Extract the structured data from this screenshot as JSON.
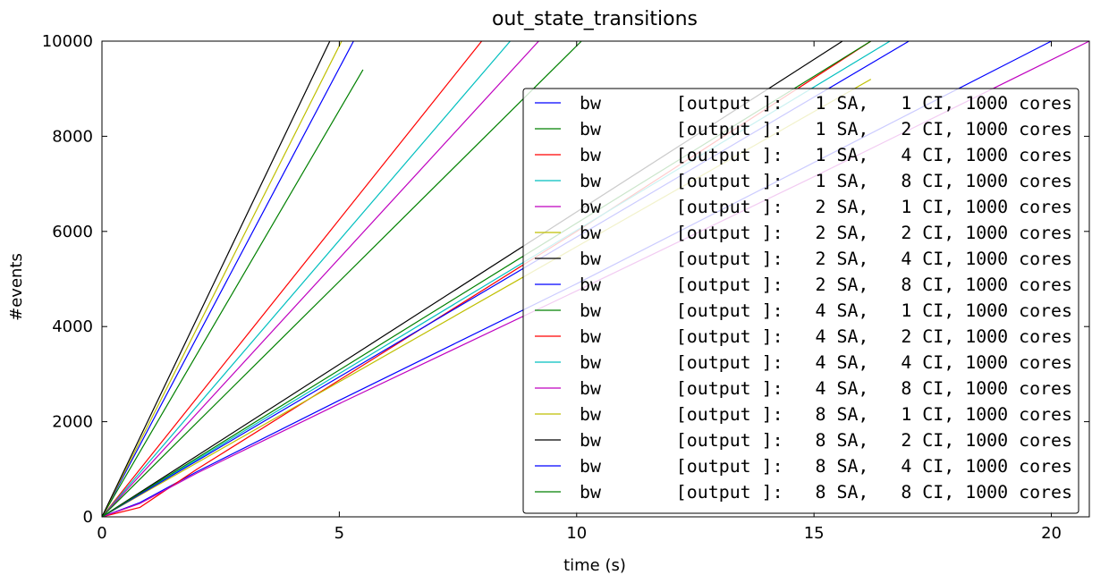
{
  "chart_data": {
    "type": "line",
    "title": "out_state_transitions",
    "xlabel": "time (s)",
    "ylabel": "#events",
    "xlim": [
      0,
      20.8
    ],
    "ylim": [
      0,
      10000
    ],
    "xticks": [
      0,
      5,
      10,
      15,
      20
    ],
    "yticks": [
      0,
      2000,
      4000,
      6000,
      8000,
      10000
    ],
    "grid": false,
    "legend_position": "right",
    "series": [
      {
        "name": "bw       [output ]:   1 SA,   1 CI, 1000 cores",
        "color": "#0000ff",
        "x": [
          0,
          5.3
        ],
        "y": [
          0,
          10000
        ]
      },
      {
        "name": "bw       [output ]:   1 SA,   2 CI, 1000 cores",
        "color": "#008000",
        "x": [
          0,
          5.5
        ],
        "y": [
          0,
          9400
        ]
      },
      {
        "name": "bw       [output ]:   1 SA,   4 CI, 1000 cores",
        "color": "#ff0000",
        "x": [
          0,
          8.0
        ],
        "y": [
          0,
          10000
        ]
      },
      {
        "name": "bw       [output ]:   1 SA,   8 CI, 1000 cores",
        "color": "#00bfbf",
        "x": [
          0,
          8.6
        ],
        "y": [
          0,
          10000
        ]
      },
      {
        "name": "bw       [output ]:   2 SA,   1 CI, 1000 cores",
        "color": "#bf00bf",
        "x": [
          0,
          9.2
        ],
        "y": [
          0,
          10000
        ]
      },
      {
        "name": "bw       [output ]:   2 SA,   2 CI, 1000 cores",
        "color": "#bfbf00",
        "x": [
          0,
          5.05
        ],
        "y": [
          0,
          10000
        ]
      },
      {
        "name": "bw       [output ]:   2 SA,   4 CI, 1000 cores",
        "color": "#000000",
        "x": [
          0,
          4.8
        ],
        "y": [
          0,
          10000
        ]
      },
      {
        "name": "bw       [output ]:   2 SA,   8 CI, 1000 cores",
        "color": "#0000ff",
        "x": [
          0,
          0.8,
          2,
          5,
          10,
          15,
          20
        ],
        "y": [
          0,
          300,
          950,
          2450,
          4900,
          7450,
          10000
        ]
      },
      {
        "name": "bw       [output ]:   4 SA,   1 CI, 1000 cores",
        "color": "#008000",
        "x": [
          0,
          10.1
        ],
        "y": [
          0,
          10000
        ]
      },
      {
        "name": "bw       [output ]:   4 SA,   2 CI, 1000 cores",
        "color": "#ff0000",
        "x": [
          0,
          0.8,
          2,
          10,
          16.2
        ],
        "y": [
          0,
          200,
          1000,
          6000,
          10000
        ]
      },
      {
        "name": "bw       [output ]:   4 SA,   4 CI, 1000 cores",
        "color": "#00bfbf",
        "x": [
          0,
          16.6
        ],
        "y": [
          0,
          10000
        ]
      },
      {
        "name": "bw       [output ]:   4 SA,   8 CI, 1000 cores",
        "color": "#bf00bf",
        "x": [
          0,
          0.8,
          2,
          5,
          10,
          15,
          20.8
        ],
        "y": [
          0,
          280,
          920,
          2380,
          4750,
          7150,
          10000
        ]
      },
      {
        "name": "bw       [output ]:   8 SA,   1 CI, 1000 cores",
        "color": "#bfbf00",
        "x": [
          0,
          16.2
        ],
        "y": [
          0,
          9200
        ]
      },
      {
        "name": "bw       [output ]:   8 SA,   2 CI, 1000 cores",
        "color": "#000000",
        "x": [
          0,
          15.6
        ],
        "y": [
          0,
          10000
        ]
      },
      {
        "name": "bw       [output ]:   8 SA,   4 CI, 1000 cores",
        "color": "#0000ff",
        "x": [
          0,
          17.0
        ],
        "y": [
          0,
          10000
        ]
      },
      {
        "name": "bw       [output ]:   8 SA,   8 CI, 1000 cores",
        "color": "#008000",
        "x": [
          0,
          16.2
        ],
        "y": [
          0,
          10000
        ]
      }
    ]
  }
}
